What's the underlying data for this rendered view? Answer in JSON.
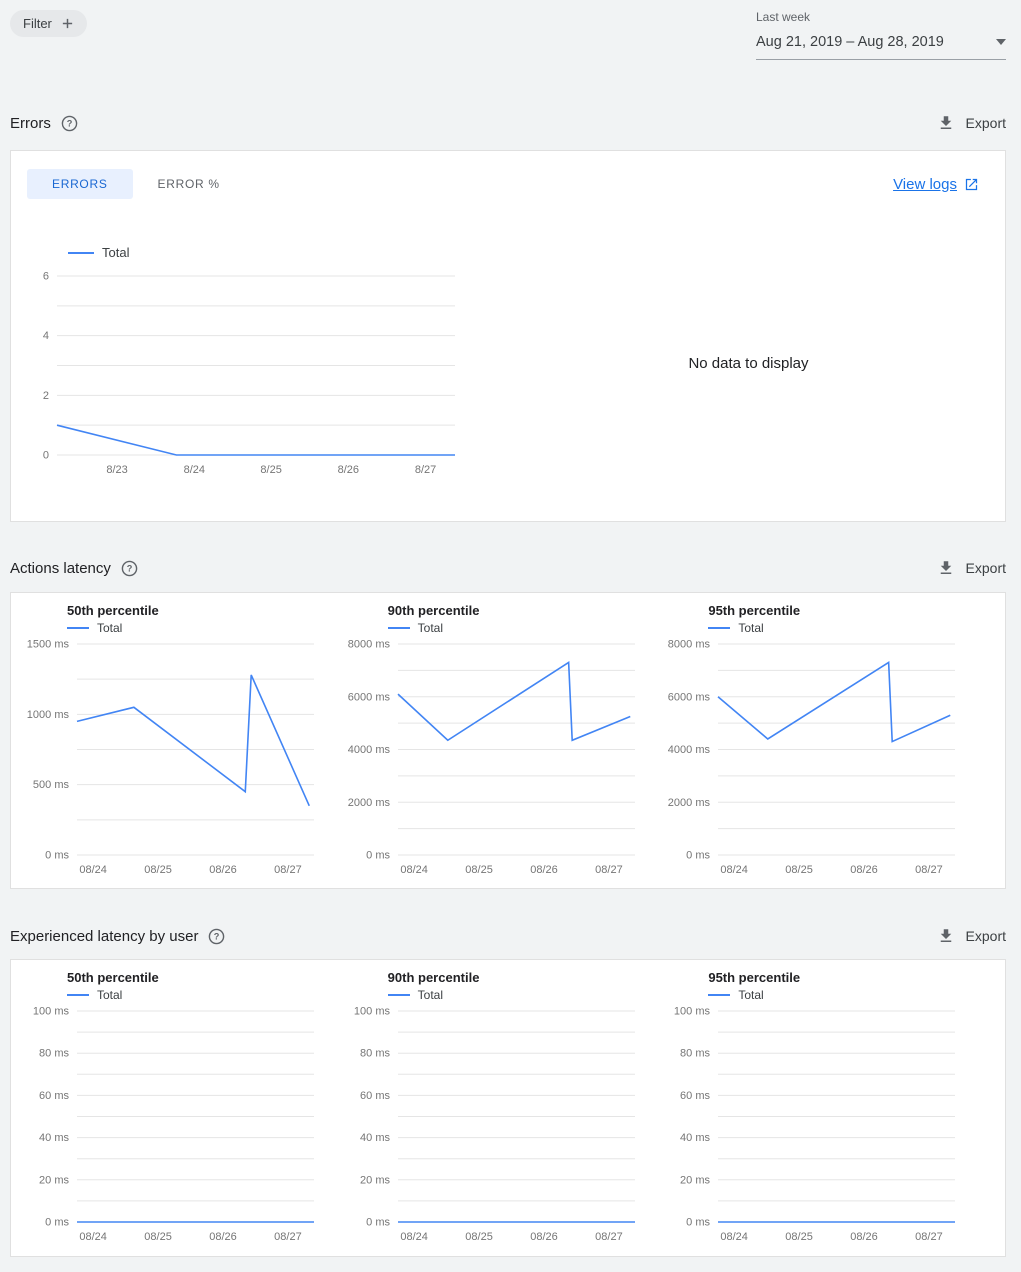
{
  "colors": {
    "page_background": "#f1f3f4",
    "card_background": "#ffffff",
    "card_border": "#e0e0e0",
    "chart_line": "#4285f4",
    "grid_line": "#e5e5e5",
    "tick_label": "#757575",
    "link_blue": "#1a73e8",
    "tab_active_bg": "#e8f0fe",
    "tab_active_text": "#1967d2",
    "text_primary": "#202124",
    "text_secondary": "#5f6368"
  },
  "toolbar": {
    "filter_label": "Filter",
    "date_preset_label": "Last week",
    "date_range_value": "Aug 21, 2019 – Aug 28, 2019"
  },
  "sections": {
    "errors": {
      "title": "Errors",
      "export_label": "Export",
      "tabs": [
        {
          "label": "ERRORS",
          "active": true
        },
        {
          "label": "ERROR %",
          "active": false
        }
      ],
      "view_logs_label": "View logs",
      "no_data_message": "No data to display"
    },
    "actions_latency": {
      "title": "Actions latency",
      "export_label": "Export"
    },
    "experienced_latency": {
      "title": "Experienced latency by user",
      "export_label": "Export"
    }
  },
  "chart_data": [
    {
      "id": "errors-total",
      "type": "line",
      "legend_position": "top-left",
      "x_unit": "fraction-of-plot-width",
      "ylim": [
        0,
        6
      ],
      "yticks": [
        {
          "v": 0,
          "label": "0"
        },
        {
          "v": 1
        },
        {
          "v": 2,
          "label": "2"
        },
        {
          "v": 3
        },
        {
          "v": 4,
          "label": "4"
        },
        {
          "v": 5
        },
        {
          "v": 6,
          "label": "6"
        }
      ],
      "xticks": [
        {
          "pos": 0.151,
          "label": "8/23"
        },
        {
          "pos": 0.345,
          "label": "8/24"
        },
        {
          "pos": 0.538,
          "label": "8/25"
        },
        {
          "pos": 0.732,
          "label": "8/26"
        },
        {
          "pos": 0.926,
          "label": "8/27"
        }
      ],
      "series": [
        {
          "name": "Total",
          "points": [
            [
              0,
              1
            ],
            [
              0.3,
              0
            ],
            [
              1,
              0
            ]
          ]
        }
      ]
    },
    {
      "id": "actions-latency-p50",
      "type": "line",
      "title": "50th percentile",
      "x_unit": "fraction-of-plot-width",
      "ylim": [
        0,
        1500
      ],
      "yticks": [
        {
          "v": 0,
          "label": "0 ms"
        },
        {
          "v": 250
        },
        {
          "v": 500,
          "label": "500 ms"
        },
        {
          "v": 750
        },
        {
          "v": 1000,
          "label": "1000 ms"
        },
        {
          "v": 1250
        },
        {
          "v": 1500,
          "label": "1500 ms"
        }
      ],
      "xticks": [
        {
          "pos": 0.068,
          "label": "08/24"
        },
        {
          "pos": 0.342,
          "label": "08/25"
        },
        {
          "pos": 0.616,
          "label": "08/26"
        },
        {
          "pos": 0.89,
          "label": "08/27"
        }
      ],
      "series": [
        {
          "name": "Total",
          "points": [
            [
              0,
              950
            ],
            [
              0.24,
              1050
            ],
            [
              0.71,
              450
            ],
            [
              0.735,
              1280
            ],
            [
              0.98,
              350
            ]
          ]
        }
      ]
    },
    {
      "id": "actions-latency-p90",
      "type": "line",
      "title": "90th percentile",
      "x_unit": "fraction-of-plot-width",
      "ylim": [
        0,
        8000
      ],
      "yticks": [
        {
          "v": 0,
          "label": "0 ms"
        },
        {
          "v": 1000
        },
        {
          "v": 2000,
          "label": "2000 ms"
        },
        {
          "v": 3000
        },
        {
          "v": 4000,
          "label": "4000 ms"
        },
        {
          "v": 5000
        },
        {
          "v": 6000,
          "label": "6000 ms"
        },
        {
          "v": 7000
        },
        {
          "v": 8000,
          "label": "8000 ms"
        }
      ],
      "xticks": [
        {
          "pos": 0.068,
          "label": "08/24"
        },
        {
          "pos": 0.342,
          "label": "08/25"
        },
        {
          "pos": 0.616,
          "label": "08/26"
        },
        {
          "pos": 0.89,
          "label": "08/27"
        }
      ],
      "series": [
        {
          "name": "Total",
          "points": [
            [
              0,
              6100
            ],
            [
              0.21,
              4350
            ],
            [
              0.72,
              7300
            ],
            [
              0.735,
              4350
            ],
            [
              0.98,
              5250
            ]
          ]
        }
      ]
    },
    {
      "id": "actions-latency-p95",
      "type": "line",
      "title": "95th percentile",
      "x_unit": "fraction-of-plot-width",
      "ylim": [
        0,
        8000
      ],
      "yticks": [
        {
          "v": 0,
          "label": "0 ms"
        },
        {
          "v": 1000
        },
        {
          "v": 2000,
          "label": "2000 ms"
        },
        {
          "v": 3000
        },
        {
          "v": 4000,
          "label": "4000 ms"
        },
        {
          "v": 5000
        },
        {
          "v": 6000,
          "label": "6000 ms"
        },
        {
          "v": 7000
        },
        {
          "v": 8000,
          "label": "8000 ms"
        }
      ],
      "xticks": [
        {
          "pos": 0.068,
          "label": "08/24"
        },
        {
          "pos": 0.342,
          "label": "08/25"
        },
        {
          "pos": 0.616,
          "label": "08/26"
        },
        {
          "pos": 0.89,
          "label": "08/27"
        }
      ],
      "series": [
        {
          "name": "Total",
          "points": [
            [
              0,
              6000
            ],
            [
              0.21,
              4400
            ],
            [
              0.72,
              7300
            ],
            [
              0.735,
              4300
            ],
            [
              0.98,
              5300
            ]
          ]
        }
      ]
    },
    {
      "id": "experienced-latency-p50",
      "type": "line",
      "title": "50th percentile",
      "x_unit": "fraction-of-plot-width",
      "ylim": [
        0,
        100
      ],
      "yticks": [
        {
          "v": 0,
          "label": "0 ms"
        },
        {
          "v": 10
        },
        {
          "v": 20,
          "label": "20 ms"
        },
        {
          "v": 30
        },
        {
          "v": 40,
          "label": "40 ms"
        },
        {
          "v": 50
        },
        {
          "v": 60,
          "label": "60 ms"
        },
        {
          "v": 70
        },
        {
          "v": 80,
          "label": "80 ms"
        },
        {
          "v": 90
        },
        {
          "v": 100,
          "label": "100 ms"
        }
      ],
      "xticks": [
        {
          "pos": 0.068,
          "label": "08/24"
        },
        {
          "pos": 0.342,
          "label": "08/25"
        },
        {
          "pos": 0.616,
          "label": "08/26"
        },
        {
          "pos": 0.89,
          "label": "08/27"
        }
      ],
      "series": [
        {
          "name": "Total",
          "points": [
            [
              0,
              0
            ],
            [
              1,
              0
            ]
          ]
        }
      ]
    },
    {
      "id": "experienced-latency-p90",
      "type": "line",
      "title": "90th percentile",
      "x_unit": "fraction-of-plot-width",
      "ylim": [
        0,
        100
      ],
      "yticks": [
        {
          "v": 0,
          "label": "0 ms"
        },
        {
          "v": 10
        },
        {
          "v": 20,
          "label": "20 ms"
        },
        {
          "v": 30
        },
        {
          "v": 40,
          "label": "40 ms"
        },
        {
          "v": 50
        },
        {
          "v": 60,
          "label": "60 ms"
        },
        {
          "v": 70
        },
        {
          "v": 80,
          "label": "80 ms"
        },
        {
          "v": 90
        },
        {
          "v": 100,
          "label": "100 ms"
        }
      ],
      "xticks": [
        {
          "pos": 0.068,
          "label": "08/24"
        },
        {
          "pos": 0.342,
          "label": "08/25"
        },
        {
          "pos": 0.616,
          "label": "08/26"
        },
        {
          "pos": 0.89,
          "label": "08/27"
        }
      ],
      "series": [
        {
          "name": "Total",
          "points": [
            [
              0,
              0
            ],
            [
              1,
              0
            ]
          ]
        }
      ]
    },
    {
      "id": "experienced-latency-p95",
      "type": "line",
      "title": "95th percentile",
      "x_unit": "fraction-of-plot-width",
      "ylim": [
        0,
        100
      ],
      "yticks": [
        {
          "v": 0,
          "label": "0 ms"
        },
        {
          "v": 10
        },
        {
          "v": 20,
          "label": "20 ms"
        },
        {
          "v": 30
        },
        {
          "v": 40,
          "label": "40 ms"
        },
        {
          "v": 50
        },
        {
          "v": 60,
          "label": "60 ms"
        },
        {
          "v": 70
        },
        {
          "v": 80,
          "label": "80 ms"
        },
        {
          "v": 90
        },
        {
          "v": 100,
          "label": "100 ms"
        }
      ],
      "xticks": [
        {
          "pos": 0.068,
          "label": "08/24"
        },
        {
          "pos": 0.342,
          "label": "08/25"
        },
        {
          "pos": 0.616,
          "label": "08/26"
        },
        {
          "pos": 0.89,
          "label": "08/27"
        }
      ],
      "series": [
        {
          "name": "Total",
          "points": [
            [
              0,
              0
            ],
            [
              1,
              0
            ]
          ]
        }
      ]
    }
  ]
}
